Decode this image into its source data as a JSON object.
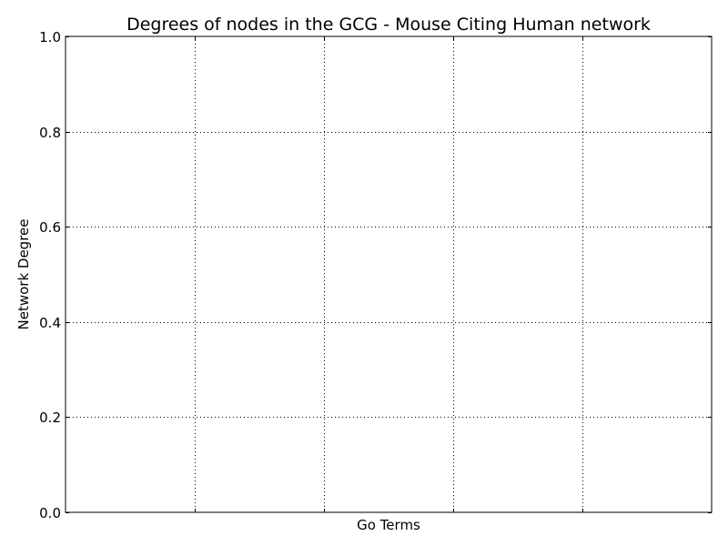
{
  "chart_data": {
    "type": "bar",
    "title": "Degrees of nodes in the GCG - Mouse Citing Human network",
    "xlabel": "Go Terms",
    "ylabel": "Network Degree",
    "categories": [],
    "values": [],
    "xlim": [
      0,
      5
    ],
    "ylim": [
      0,
      1
    ],
    "x_gridlines": [
      1,
      2,
      3,
      4
    ],
    "yticks": [
      0.0,
      0.2,
      0.4,
      0.6,
      0.8,
      1.0
    ],
    "ytick_labels": [
      "0.0",
      "0.2",
      "0.4",
      "0.6",
      "0.8",
      "1.0"
    ],
    "grid": true,
    "grid_style": "dotted",
    "colors": {
      "background": "#ffffff",
      "axes": "#000000",
      "grid": "#000000",
      "text": "#000000"
    }
  }
}
